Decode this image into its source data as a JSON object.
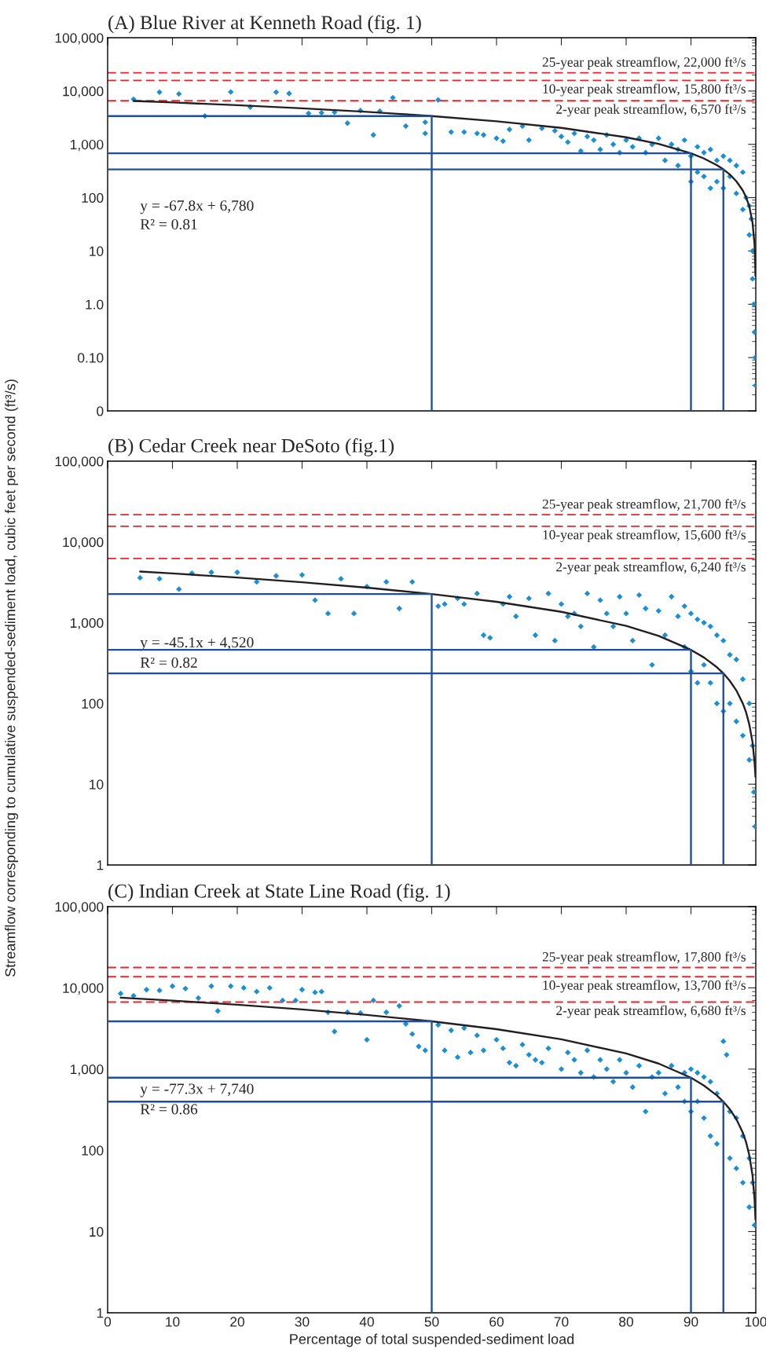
{
  "chart_data": [
    {
      "type": "scatter",
      "title": "(A) Blue River at Kenneth Road (fig. 1)",
      "xlim": [
        0,
        100
      ],
      "xticks": [
        0,
        10,
        20,
        30,
        40,
        50,
        60,
        70,
        80,
        90,
        100
      ],
      "ylim": [
        0.01,
        100000
      ],
      "yticks": [
        {
          "value": 0.01,
          "label": "0"
        },
        {
          "value": 0.1,
          "label": "0.10"
        },
        {
          "value": 1,
          "label": "1.0"
        },
        10,
        100,
        {
          "value": 1000,
          "label": "1,000"
        },
        {
          "value": 10000,
          "label": "10,000"
        },
        {
          "value": 100000,
          "label": "100,000"
        }
      ],
      "log": "y",
      "tick_labels": "y",
      "grid": false,
      "series": [
        {
          "type": "scatter",
          "color": "#1a8fd6",
          "marker": "diamond",
          "x": [
            4,
            8,
            11,
            15,
            19,
            22,
            26,
            28,
            31,
            33,
            35,
            37,
            39,
            41,
            42,
            44,
            46,
            49,
            49,
            51,
            53,
            55,
            57,
            58,
            60,
            61,
            62,
            64,
            65,
            67,
            69,
            70,
            71,
            72,
            73,
            74,
            75,
            76,
            77,
            78,
            79,
            80,
            81,
            82,
            83,
            84,
            85,
            86,
            87,
            88,
            88,
            89,
            90,
            90,
            91,
            91,
            92,
            92,
            93,
            93,
            94,
            94,
            95,
            95,
            96,
            96,
            97,
            97,
            98,
            98,
            98.5,
            99,
            99,
            99.3,
            99.5,
            99.5,
            99.7,
            99.8,
            99.9,
            99.95
          ],
          "values": [
            7000,
            9500,
            8800,
            3400,
            9600,
            5000,
            9500,
            9000,
            3800,
            3900,
            4000,
            2500,
            4300,
            1500,
            4200,
            7500,
            2200,
            2600,
            1600,
            6800,
            1700,
            1700,
            1600,
            1500,
            1300,
            1150,
            1900,
            2200,
            1200,
            2000,
            1800,
            1400,
            1100,
            1600,
            750,
            1400,
            1200,
            800,
            1500,
            1000,
            700,
            1200,
            900,
            1300,
            700,
            1000,
            1300,
            500,
            1000,
            800,
            400,
            1200,
            200,
            600,
            900,
            300,
            700,
            250,
            800,
            150,
            500,
            200,
            600,
            150,
            500,
            250,
            400,
            120,
            300,
            60,
            100,
            70,
            20,
            40,
            3,
            10,
            1,
            0.3,
            0.1,
            0.03
          ]
        },
        {
          "type": "line",
          "color": "#231f20",
          "x": [
            4,
            10,
            20,
            30,
            40,
            50,
            60,
            70,
            80,
            85,
            90,
            92,
            94,
            95,
            96,
            97,
            98,
            98.5,
            99,
            99.5,
            99.8,
            99.9,
            99.95
          ],
          "values": [
            6509,
            6102,
            5424,
            4746,
            4068,
            3390,
            2712,
            2034,
            1356,
            1017,
            678,
            542,
            407,
            339,
            271,
            203,
            136,
            102,
            68,
            34,
            13.6,
            6.78,
            3.39
          ]
        },
        {
          "type": "line",
          "color": "#1f4e9c",
          "x": [
            0,
            50,
            50
          ],
          "values": [
            3390,
            3390,
            0.01
          ]
        },
        {
          "type": "line",
          "color": "#1f4e9c",
          "x": [
            0,
            90,
            90
          ],
          "values": [
            678,
            678,
            0.01
          ]
        },
        {
          "type": "line",
          "color": "#1f4e9c",
          "x": [
            0,
            95,
            95
          ],
          "values": [
            339,
            339,
            0.01
          ]
        }
      ],
      "ref_lines": [
        {
          "axis": "y",
          "value": 22000,
          "label": "25-year peak streamflow, 22,000 ft³/s",
          "color": "#e8262b",
          "line_style": "dashed"
        },
        {
          "axis": "y",
          "value": 15800,
          "label": "10-year peak streamflow, 15,800 ft³/s",
          "color": "#e8262b",
          "line_style": "dashed"
        },
        {
          "axis": "y",
          "value": 6570,
          "label": "2-year peak streamflow, 6,570 ft³/s",
          "color": "#e8262b",
          "line_style": "dashed"
        }
      ],
      "annotations": [
        "y = -67.8x + 6,780",
        "R² = 0.81"
      ]
    },
    {
      "type": "scatter",
      "title": "(B) Cedar Creek near DeSoto (fig.1)",
      "ylabel": "Streamflow corresponding to cumulative suspended-sediment load, cubic feet per second (ft³/s)",
      "xlim": [
        0,
        100
      ],
      "xticks": [
        0,
        10,
        20,
        30,
        40,
        50,
        60,
        70,
        80,
        90,
        100
      ],
      "ylim": [
        1,
        100000
      ],
      "yticks": [
        1,
        10,
        100,
        {
          "value": 1000,
          "label": "1,000"
        },
        {
          "value": 10000,
          "label": "10,000"
        },
        {
          "value": 100000,
          "label": "100,000"
        }
      ],
      "log": "y",
      "tick_labels": "y",
      "grid": false,
      "series": [
        {
          "type": "scatter",
          "color": "#1a8fd6",
          "marker": "diamond",
          "x": [
            5,
            8,
            11,
            13,
            16,
            20,
            23,
            26,
            30,
            32,
            34,
            36,
            38,
            40,
            43,
            45,
            47,
            51,
            52,
            54,
            55,
            57,
            58,
            59,
            61,
            62,
            63,
            65,
            66,
            68,
            69,
            70,
            71,
            72,
            73,
            74,
            75,
            76,
            77,
            78,
            79,
            80,
            81,
            82,
            83,
            84,
            85,
            86,
            87,
            88,
            89,
            89,
            90,
            90,
            91,
            91,
            92,
            92,
            93,
            93,
            94,
            94,
            95,
            95,
            96,
            96,
            97,
            97,
            98,
            98,
            99,
            99,
            99.5,
            99.7,
            99.9
          ],
          "values": [
            3600,
            3500,
            2600,
            4100,
            4200,
            4200,
            3200,
            3800,
            3900,
            1900,
            1300,
            3500,
            1300,
            2800,
            3200,
            1500,
            3200,
            1600,
            1700,
            2000,
            1700,
            2300,
            700,
            650,
            1700,
            2100,
            1200,
            2000,
            700,
            2300,
            600,
            1700,
            1200,
            1300,
            900,
            2300,
            500,
            1900,
            1300,
            900,
            2100,
            1300,
            600,
            2200,
            1500,
            300,
            1400,
            700,
            2100,
            1200,
            1600,
            500,
            1300,
            250,
            1100,
            180,
            1000,
            300,
            900,
            180,
            700,
            100,
            600,
            80,
            400,
            100,
            350,
            60,
            200,
            40,
            100,
            20,
            30,
            8,
            3
          ]
        },
        {
          "type": "line",
          "color": "#231f20",
          "x": [
            5,
            10,
            20,
            30,
            40,
            50,
            60,
            70,
            80,
            85,
            90,
            92,
            94,
            95,
            96,
            97,
            98,
            98.5,
            99,
            99.5,
            99.8,
            99.9,
            99.95
          ],
          "values": [
            4295,
            4069,
            3618,
            3167,
            2716,
            2265,
            1814,
            1363,
            912,
            687,
            461,
            371,
            281,
            236,
            190,
            145,
            100,
            78,
            55,
            33,
            19,
            14.5,
            12.3
          ]
        },
        {
          "type": "line",
          "color": "#1f4e9c",
          "x": [
            0,
            50,
            50
          ],
          "values": [
            2265,
            2265,
            1
          ]
        },
        {
          "type": "line",
          "color": "#1f4e9c",
          "x": [
            0,
            90,
            90
          ],
          "values": [
            461,
            461,
            1
          ]
        },
        {
          "type": "line",
          "color": "#1f4e9c",
          "x": [
            0,
            95,
            95
          ],
          "values": [
            236,
            236,
            1
          ]
        }
      ],
      "ref_lines": [
        {
          "axis": "y",
          "value": 21700,
          "label": "25-year peak streamflow, 21,700 ft³/s",
          "color": "#e8262b",
          "line_style": "dashed"
        },
        {
          "axis": "y",
          "value": 15600,
          "label": "10-year peak streamflow, 15,600 ft³/s",
          "color": "#e8262b",
          "line_style": "dashed"
        },
        {
          "axis": "y",
          "value": 6240,
          "label": "2-year peak streamflow, 6,240 ft³/s",
          "color": "#e8262b",
          "line_style": "dashed"
        }
      ],
      "annotations": [
        "y = -45.1x + 4,520",
        "R² = 0.82"
      ]
    },
    {
      "type": "scatter",
      "title": "(C) Indian Creek at State Line Road (fig. 1)",
      "xlabel": "Percentage of total suspended-sediment load",
      "xlim": [
        0,
        100
      ],
      "xticks": [
        0,
        10,
        20,
        30,
        40,
        50,
        60,
        70,
        80,
        90,
        100
      ],
      "ylim": [
        1,
        100000
      ],
      "yticks": [
        1,
        10,
        100,
        {
          "value": 1000,
          "label": "1,000"
        },
        {
          "value": 10000,
          "label": "10,000"
        },
        {
          "value": 100000,
          "label": "100,000"
        }
      ],
      "log": "y",
      "grid": false,
      "series": [
        {
          "type": "scatter",
          "color": "#1a8fd6",
          "marker": "diamond",
          "x": [
            2,
            4,
            6,
            8,
            10,
            12,
            14,
            16,
            17,
            19,
            21,
            23,
            25,
            27,
            29,
            30,
            32,
            33,
            34,
            35,
            37,
            39,
            40,
            41,
            43,
            45,
            46,
            47,
            48,
            49,
            51,
            52,
            53,
            54,
            55,
            56,
            57,
            58,
            60,
            61,
            62,
            63,
            64,
            65,
            66,
            67,
            68,
            70,
            71,
            72,
            73,
            74,
            75,
            76,
            77,
            78,
            79,
            80,
            81,
            82,
            83,
            84,
            85,
            86,
            87,
            88,
            89,
            89,
            90,
            90,
            91,
            91,
            92,
            92,
            93,
            93,
            94,
            94,
            95,
            95.5,
            96,
            96,
            97,
            97,
            98,
            98,
            99,
            99,
            99.5,
            99.8
          ],
          "values": [
            8500,
            8000,
            9500,
            9300,
            10500,
            9800,
            7500,
            10500,
            5200,
            10500,
            10000,
            9000,
            10000,
            7000,
            7000,
            9500,
            8800,
            9000,
            5000,
            2900,
            5000,
            4900,
            2300,
            7000,
            5000,
            6000,
            3600,
            2700,
            1900,
            1700,
            3500,
            1700,
            3000,
            1400,
            3200,
            1600,
            2600,
            1700,
            2300,
            1800,
            1200,
            1100,
            2000,
            1500,
            1300,
            1200,
            1800,
            1000,
            1600,
            1300,
            900,
            1700,
            800,
            1300,
            1000,
            700,
            1300,
            900,
            600,
            1100,
            300,
            800,
            900,
            500,
            1100,
            600,
            900,
            400,
            1000,
            300,
            900,
            400,
            800,
            250,
            700,
            150,
            500,
            120,
            2200,
            1500,
            300,
            80,
            250,
            60,
            150,
            40,
            80,
            20,
            40,
            12
          ]
        },
        {
          "type": "line",
          "color": "#231f20",
          "x": [
            2,
            10,
            20,
            30,
            40,
            50,
            60,
            70,
            80,
            85,
            90,
            92,
            94,
            95,
            96,
            97,
            98,
            98.5,
            99,
            99.5,
            99.8,
            99.9,
            99.95
          ],
          "values": [
            7585,
            6967,
            6194,
            5421,
            4648,
            3875,
            3102,
            2329,
            1556,
            1170,
            783,
            628,
            474,
            397,
            319,
            242,
            165,
            126,
            87,
            49,
            25.6,
            17.8,
            14
          ]
        },
        {
          "type": "line",
          "color": "#1f4e9c",
          "x": [
            0,
            50,
            50
          ],
          "values": [
            3875,
            3875,
            1
          ]
        },
        {
          "type": "line",
          "color": "#1f4e9c",
          "x": [
            0,
            90,
            90
          ],
          "values": [
            783,
            783,
            1
          ]
        },
        {
          "type": "line",
          "color": "#1f4e9c",
          "x": [
            0,
            95,
            95
          ],
          "values": [
            397,
            397,
            1
          ]
        }
      ],
      "ref_lines": [
        {
          "axis": "y",
          "value": 17800,
          "label": "25-year peak streamflow, 17,800 ft³/s",
          "color": "#e8262b",
          "line_style": "dashed"
        },
        {
          "axis": "y",
          "value": 13700,
          "label": "10-year peak streamflow, 13,700 ft³/s",
          "color": "#e8262b",
          "line_style": "dashed"
        },
        {
          "axis": "y",
          "value": 6680,
          "label": "2-year peak streamflow, 6,680 ft³/s",
          "color": "#e8262b",
          "line_style": "dashed"
        }
      ],
      "annotations": [
        "y = -77.3x + 7,740",
        "R² = 0.86"
      ]
    }
  ]
}
